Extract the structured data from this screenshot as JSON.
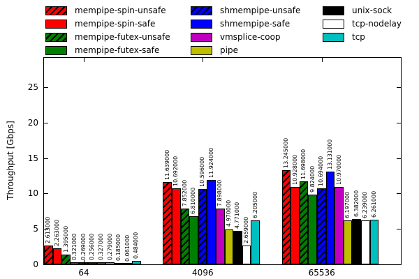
{
  "figure": {
    "background": "#ffffff"
  },
  "chart_data": {
    "type": "bar",
    "title": "",
    "xlabel": "",
    "ylabel": "Throughput [Gbps]",
    "categories": [
      "64",
      "4096",
      "65536"
    ],
    "yticks": [
      0,
      5,
      10,
      15,
      20,
      25
    ],
    "ylim": [
      0,
      29.13
    ],
    "grid": false,
    "legend_position": "top",
    "legend_columns": [
      4,
      4,
      3
    ],
    "value_label_decimals": 6,
    "series": [
      {
        "name": "mempipe-spin-unsafe",
        "color": "#ff0000",
        "hatch": true,
        "values": [
          2.613,
          11.639,
          13.245
        ]
      },
      {
        "name": "mempipe-spin-safe",
        "color": "#ff0000",
        "hatch": false,
        "values": [
          2.263,
          10.692,
          10.928
        ]
      },
      {
        "name": "mempipe-futex-unsafe",
        "color": "#008000",
        "hatch": true,
        "values": [
          1.395,
          7.852,
          11.698
        ]
      },
      {
        "name": "mempipe-futex-safe",
        "color": "#008000",
        "hatch": false,
        "values": [
          0.321,
          6.81,
          9.824
        ]
      },
      {
        "name": "shmempipe-unsafe",
        "color": "#0000ff",
        "hatch": true,
        "values": [
          0.269,
          10.596,
          10.694
        ]
      },
      {
        "name": "shmempipe-safe",
        "color": "#0000ff",
        "hatch": false,
        "values": [
          0.256,
          11.924,
          13.131
        ]
      },
      {
        "name": "vmsplice-coop",
        "color": "#bf00bf",
        "hatch": false,
        "values": [
          0.327,
          7.898,
          10.97
        ]
      },
      {
        "name": "pipe",
        "color": "#bfbf00",
        "hatch": false,
        "values": [
          0.279,
          4.97,
          6.197
        ]
      },
      {
        "name": "unix-sock",
        "color": "#000000",
        "hatch": false,
        "values": [
          0.185,
          4.771,
          6.382
        ]
      },
      {
        "name": "tcp-nodelay",
        "color": "#ffffff",
        "hatch": false,
        "values": [
          0.061,
          2.659,
          6.239
        ]
      },
      {
        "name": "tcp",
        "color": "#00bfbf",
        "hatch": false,
        "values": [
          0.484,
          6.205,
          6.261
        ]
      }
    ]
  }
}
